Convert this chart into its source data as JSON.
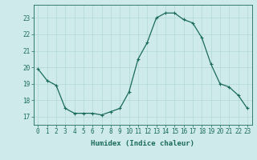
{
  "x": [
    0,
    1,
    2,
    3,
    4,
    5,
    6,
    7,
    8,
    9,
    10,
    11,
    12,
    13,
    14,
    15,
    16,
    17,
    18,
    19,
    20,
    21,
    22,
    23
  ],
  "y": [
    19.9,
    19.2,
    18.9,
    17.5,
    17.2,
    17.2,
    17.2,
    17.1,
    17.3,
    17.5,
    18.5,
    20.5,
    21.5,
    23.0,
    23.3,
    23.3,
    22.9,
    22.7,
    21.8,
    20.2,
    19.0,
    18.8,
    18.3,
    17.5
  ],
  "line_color": "#1a6b5a",
  "marker": "+",
  "marker_size": 3,
  "marker_linewidth": 0.8,
  "line_width": 0.9,
  "bg_color": "#ceeaea",
  "grid_color": "#b0d8d8",
  "xlabel": "Humidex (Indice chaleur)",
  "ylim": [
    16.5,
    23.8
  ],
  "xlim": [
    -0.5,
    23.5
  ],
  "yticks": [
    17,
    18,
    19,
    20,
    21,
    22,
    23
  ],
  "xticks": [
    0,
    1,
    2,
    3,
    4,
    5,
    6,
    7,
    8,
    9,
    10,
    11,
    12,
    13,
    14,
    15,
    16,
    17,
    18,
    19,
    20,
    21,
    22,
    23
  ],
  "xlabel_fontsize": 6.5,
  "tick_fontsize": 5.5,
  "tick_color": "#1a6b5a",
  "spine_color": "#1a6b5a"
}
